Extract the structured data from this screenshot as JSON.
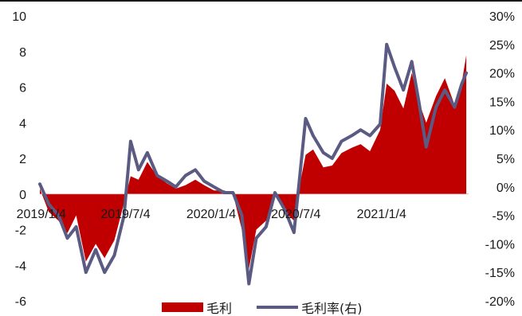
{
  "chart_data": {
    "type": "area",
    "x_tick_labels": [
      "2019/1/4",
      "2019/7/4",
      "2020/1/4",
      "2020/7/4",
      "2021/1/4"
    ],
    "x_range": [
      "2019-01-01",
      "2021-07-10"
    ],
    "y_left": {
      "range": [
        -6,
        10
      ],
      "ticks": [
        "10",
        "8",
        "6",
        "4",
        "2",
        "0",
        "-2",
        "-4",
        "-6"
      ]
    },
    "y_right": {
      "range": [
        -20,
        30
      ],
      "unit": "%",
      "ticks": [
        "30%",
        "25%",
        "20%",
        "15%",
        "10%",
        "5%",
        "0%",
        "-5%",
        "-10%",
        "-15%",
        "-20%"
      ]
    },
    "grid": false,
    "legend_position": "bottom",
    "series": [
      {
        "name": "毛利",
        "type": "area",
        "axis": "left",
        "color": "#c00000",
        "x": [
          "2019-01-01",
          "2019-01-20",
          "2019-02-10",
          "2019-03-01",
          "2019-03-20",
          "2019-04-10",
          "2019-05-01",
          "2019-05-20",
          "2019-06-10",
          "2019-07-01",
          "2019-07-15",
          "2019-08-01",
          "2019-08-20",
          "2019-09-10",
          "2019-10-01",
          "2019-10-20",
          "2019-11-10",
          "2019-12-01",
          "2019-12-20",
          "2020-01-10",
          "2020-02-01",
          "2020-02-20",
          "2020-03-10",
          "2020-03-25",
          "2020-04-10",
          "2020-05-01",
          "2020-05-20",
          "2020-06-10",
          "2020-06-30",
          "2020-07-10",
          "2020-07-25",
          "2020-08-10",
          "2020-09-01",
          "2020-09-20",
          "2020-10-10",
          "2020-11-01",
          "2020-11-20",
          "2020-12-10",
          "2021-01-01",
          "2021-01-15",
          "2021-02-01",
          "2021-02-20",
          "2021-03-10",
          "2021-03-25",
          "2021-04-10",
          "2021-05-01",
          "2021-05-20",
          "2021-06-10",
          "2021-06-25",
          "2021-07-05"
        ],
        "values": [
          0.3,
          -1.0,
          -1.5,
          -2.2,
          -1.2,
          -3.8,
          -2.8,
          -3.6,
          -2.6,
          -0.5,
          1.0,
          0.8,
          1.8,
          1.0,
          0.6,
          0.3,
          0.5,
          0.8,
          0.5,
          0.2,
          0.2,
          0.0,
          -2.0,
          -4.2,
          -2.0,
          -1.5,
          0.0,
          -1.0,
          -1.5,
          0.2,
          2.2,
          2.5,
          1.5,
          1.6,
          2.3,
          2.6,
          2.8,
          2.4,
          3.6,
          6.2,
          5.8,
          4.8,
          6.8,
          5.2,
          4.0,
          5.5,
          6.5,
          5.0,
          6.2,
          7.8
        ]
      },
      {
        "name": "毛利率(右)",
        "type": "line",
        "axis": "right",
        "color": "#5a5a82",
        "x": [
          "2019-01-01",
          "2019-01-20",
          "2019-02-10",
          "2019-03-01",
          "2019-03-20",
          "2019-04-10",
          "2019-05-01",
          "2019-05-20",
          "2019-06-10",
          "2019-07-01",
          "2019-07-15",
          "2019-08-01",
          "2019-08-20",
          "2019-09-10",
          "2019-10-01",
          "2019-10-20",
          "2019-11-10",
          "2019-12-01",
          "2019-12-20",
          "2020-01-10",
          "2020-02-01",
          "2020-02-20",
          "2020-03-10",
          "2020-03-25",
          "2020-04-10",
          "2020-05-01",
          "2020-05-20",
          "2020-06-10",
          "2020-06-30",
          "2020-07-10",
          "2020-07-25",
          "2020-08-10",
          "2020-09-01",
          "2020-09-20",
          "2020-10-10",
          "2020-11-01",
          "2020-11-20",
          "2020-12-10",
          "2021-01-01",
          "2021-01-15",
          "2021-02-01",
          "2021-02-20",
          "2021-03-10",
          "2021-03-25",
          "2021-04-10",
          "2021-05-01",
          "2021-05-20",
          "2021-06-10",
          "2021-06-25",
          "2021-07-05"
        ],
        "values": [
          0.5,
          -3.0,
          -5.0,
          -9.0,
          -7.0,
          -15.0,
          -11.0,
          -15.0,
          -12.0,
          -5.0,
          8.0,
          3.0,
          6.0,
          2.0,
          1.0,
          0.0,
          2.0,
          3.0,
          1.0,
          0.0,
          -1.0,
          -1.0,
          -5.0,
          -17.0,
          -9.0,
          -7.0,
          -1.0,
          -4.0,
          -8.0,
          0.0,
          12.0,
          9.0,
          6.0,
          5.0,
          8.0,
          9.0,
          10.0,
          9.0,
          11.0,
          25.0,
          21.0,
          17.0,
          22.0,
          15.0,
          7.0,
          14.0,
          17.0,
          14.0,
          18.0,
          20.0
        ]
      }
    ]
  }
}
